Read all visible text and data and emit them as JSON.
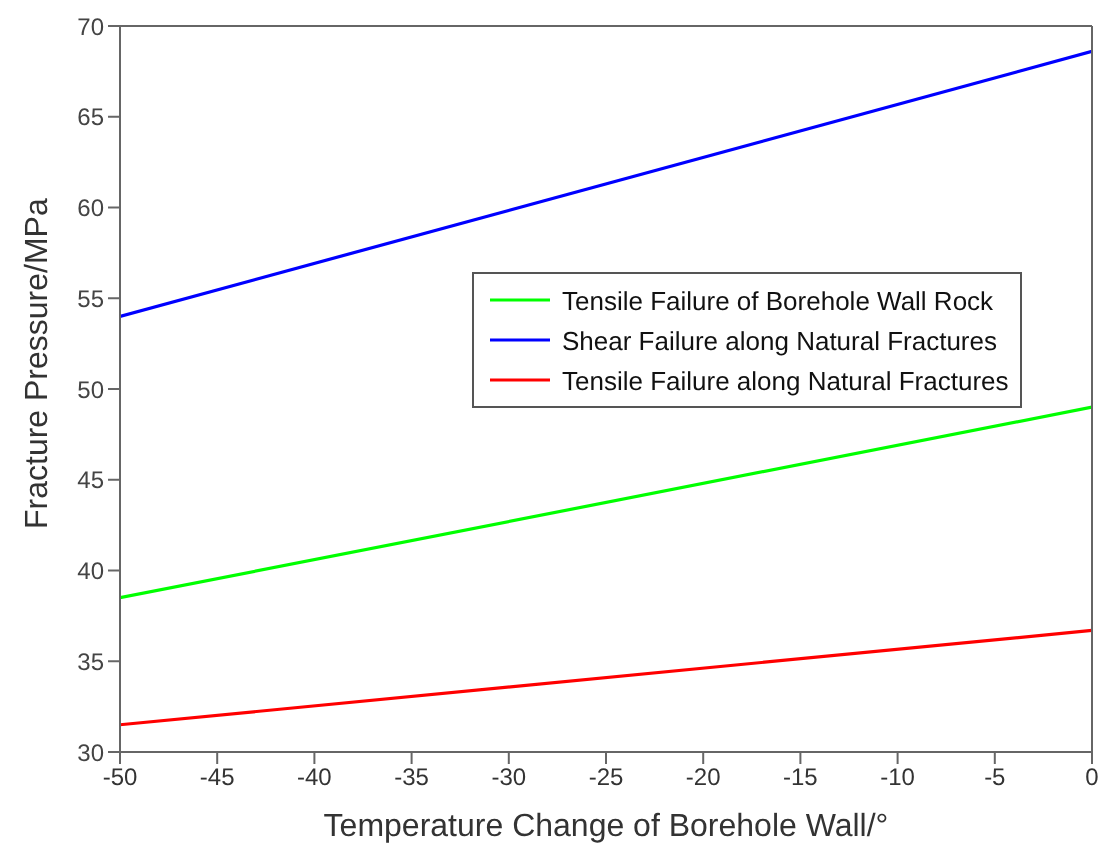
{
  "chart_data": {
    "type": "line",
    "xlabel": "Temperature Change of Borehole Wall/°",
    "ylabel": "Fracture Pressure/MPa",
    "x": [
      -50,
      0
    ],
    "series": [
      {
        "name": "Tensile Failure of Borehole Wall Rock",
        "color": "#00ff00",
        "values": [
          38.5,
          49.0
        ]
      },
      {
        "name": "Shear Failure along Natural Fractures",
        "color": "#0000ff",
        "values": [
          54.0,
          68.6
        ]
      },
      {
        "name": "Tensile Failure along Natural Fractures",
        "color": "#ff0000",
        "values": [
          31.5,
          36.7
        ]
      }
    ],
    "xlim": [
      -50,
      0
    ],
    "xticks": [
      -50,
      -45,
      -40,
      -35,
      -30,
      -25,
      -20,
      -15,
      -10,
      -5,
      0
    ],
    "ylim": [
      30,
      70
    ],
    "yticks": [
      30,
      35,
      40,
      45,
      50,
      55,
      60,
      65,
      70
    ],
    "grid": false,
    "legend": "right",
    "marker": "none",
    "line_style": "solid"
  }
}
